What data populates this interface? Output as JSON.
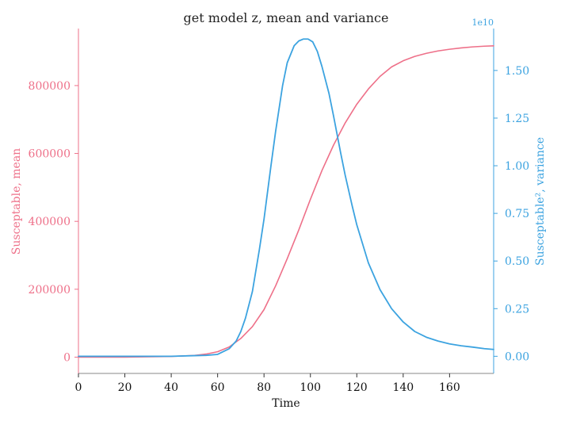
{
  "chart_data": {
    "type": "line",
    "title": "get model z, mean and variance",
    "xlabel": "Time",
    "xlim": [
      0,
      179
    ],
    "x_ticks": [
      0,
      20,
      40,
      60,
      80,
      100,
      120,
      140,
      160
    ],
    "left_axis": {
      "label": "Susceptable, mean",
      "color": "#ee7089",
      "ylim": [
        -48000,
        968000
      ],
      "ticks": [
        0,
        200000,
        400000,
        600000,
        800000
      ],
      "tick_labels": [
        "0",
        "200000",
        "400000",
        "600000",
        "800000"
      ]
    },
    "right_axis": {
      "label": "Susceptable², variance",
      "color": "#3ca3e0",
      "exponent_label": "1e10",
      "ylim": [
        -0.09,
        1.72
      ],
      "ticks": [
        0,
        0.25,
        0.5,
        0.75,
        1.0,
        1.25,
        1.5
      ],
      "tick_labels": [
        "0.00",
        "0.25",
        "0.50",
        "0.75",
        "1.00",
        "1.25",
        "1.50"
      ]
    },
    "series": [
      {
        "axis": "left",
        "x": [
          0,
          20,
          40,
          50,
          55,
          60,
          65,
          70,
          75,
          80,
          85,
          90,
          95,
          100,
          105,
          110,
          115,
          120,
          125,
          130,
          135,
          140,
          145,
          150,
          155,
          160,
          165,
          170,
          175,
          179
        ],
        "values": [
          0,
          0,
          2000,
          5000,
          9000,
          16000,
          30000,
          55000,
          90000,
          140000,
          210000,
          290000,
          375000,
          465000,
          550000,
          625000,
          690000,
          745000,
          790000,
          827000,
          855000,
          873000,
          886000,
          895000,
          902000,
          907000,
          911000,
          914000,
          916000,
          917000
        ]
      },
      {
        "axis": "right",
        "x": [
          0,
          40,
          55,
          60,
          65,
          68,
          70,
          72,
          75,
          78,
          80,
          83,
          85,
          88,
          90,
          93,
          95,
          97,
          99,
          101,
          103,
          105,
          108,
          110,
          113,
          115,
          118,
          120,
          125,
          130,
          135,
          140,
          145,
          150,
          155,
          160,
          165,
          170,
          175,
          179
        ],
        "values": [
          0,
          0,
          0.005,
          0.01,
          0.04,
          0.08,
          0.13,
          0.2,
          0.34,
          0.56,
          0.72,
          1.0,
          1.18,
          1.42,
          1.54,
          1.63,
          1.655,
          1.665,
          1.665,
          1.65,
          1.6,
          1.52,
          1.38,
          1.26,
          1.07,
          0.95,
          0.79,
          0.69,
          0.49,
          0.35,
          0.25,
          0.18,
          0.13,
          0.1,
          0.08,
          0.065,
          0.055,
          0.048,
          0.04,
          0.036
        ]
      }
    ]
  }
}
